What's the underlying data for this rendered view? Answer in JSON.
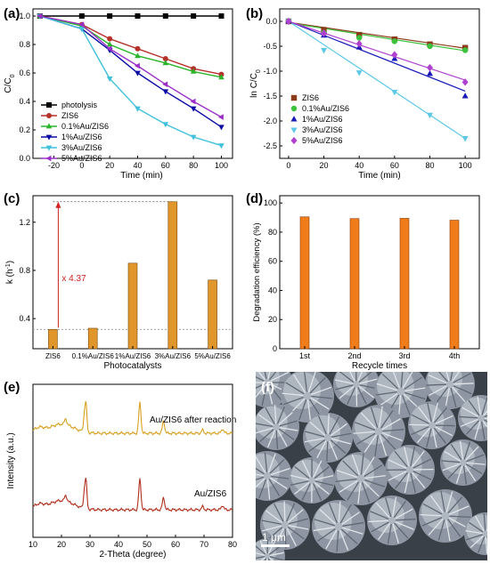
{
  "panels": {
    "a": {
      "label": "(a)"
    },
    "b": {
      "label": "(b)"
    },
    "c": {
      "label": "(c)"
    },
    "d": {
      "label": "(d)"
    },
    "e": {
      "label": "(e)"
    },
    "f": {
      "label": "(f)",
      "scale_bar": "1 μm"
    }
  },
  "chart_data": [
    {
      "id": "a",
      "type": "line",
      "xlabel": "Time (min)",
      "ylabel": "C/C0",
      "xlim": [
        -35,
        108
      ],
      "ylim": [
        0.0,
        1.05
      ],
      "xticks": [
        -20,
        0,
        20,
        40,
        60,
        80,
        100
      ],
      "yticks": [
        0.0,
        0.2,
        0.4,
        0.6,
        0.8,
        1.0
      ],
      "xticklabels": [
        "-20",
        "0",
        "20",
        "40",
        "60",
        "80",
        "100"
      ],
      "yticklabels": [
        "0.0",
        "0.2",
        "0.4",
        "0.6",
        "0.8",
        "1.0"
      ],
      "legend_position": "bottom-left",
      "x": [
        -30,
        0,
        20,
        40,
        60,
        80,
        100
      ],
      "series": [
        {
          "name": "photolysis",
          "color": "#000000",
          "marker": "square",
          "values": [
            1.0,
            1.0,
            1.0,
            1.0,
            1.0,
            1.0,
            1.0
          ]
        },
        {
          "name": "ZIS6",
          "color": "#b5312a",
          "marker": "circle",
          "values": [
            1.0,
            0.94,
            0.84,
            0.77,
            0.7,
            0.63,
            0.59
          ]
        },
        {
          "name": "0.1%Au/ZIS6",
          "color": "#2bb52b",
          "marker": "triangle-up",
          "values": [
            1.0,
            0.93,
            0.8,
            0.72,
            0.67,
            0.61,
            0.57
          ]
        },
        {
          "name": "1%Au/ZIS6",
          "color": "#0b0ba6",
          "marker": "triangle-down",
          "values": [
            1.0,
            0.91,
            0.76,
            0.6,
            0.47,
            0.35,
            0.22
          ]
        },
        {
          "name": "3%Au/ZIS6",
          "color": "#3fc0dc",
          "marker": "triangle-down",
          "values": [
            1.0,
            0.91,
            0.56,
            0.35,
            0.24,
            0.15,
            0.09
          ]
        },
        {
          "name": "5%Au/ZIS6",
          "color": "#9b30c8",
          "marker": "triangle-left",
          "values": [
            1.0,
            0.94,
            0.77,
            0.65,
            0.52,
            0.4,
            0.29
          ]
        }
      ]
    },
    {
      "id": "b",
      "type": "scatter",
      "xlabel": "Time (min)",
      "ylabel": "ln C/C0",
      "xlim": [
        -5,
        108
      ],
      "ylim": [
        -2.75,
        0.25
      ],
      "xticks": [
        0,
        20,
        40,
        60,
        80,
        100
      ],
      "yticks": [
        0.0,
        -0.5,
        -1.0,
        -1.5,
        -2.0,
        -2.5
      ],
      "xticklabels": [
        "0",
        "20",
        "40",
        "60",
        "80",
        "100"
      ],
      "yticklabels": [
        "0.0",
        "-0.5",
        "-1.0",
        "-1.5",
        "-2.0",
        "-2.5"
      ],
      "legend_position": "bottom-left",
      "x": [
        0,
        20,
        40,
        60,
        80,
        100
      ],
      "series": [
        {
          "name": "ZIS6",
          "color": "#8b3a1a",
          "marker": "square",
          "values": [
            0.0,
            -0.17,
            -0.27,
            -0.36,
            -0.46,
            -0.53
          ]
        },
        {
          "name": "0.1%Au/ZIS6",
          "color": "#3cc23c",
          "marker": "circle",
          "values": [
            0.0,
            -0.23,
            -0.33,
            -0.4,
            -0.5,
            -0.58
          ]
        },
        {
          "name": "1%Au/ZIS6",
          "color": "#1a1ab8",
          "marker": "triangle-up",
          "values": [
            0.0,
            -0.28,
            -0.52,
            -0.75,
            -1.05,
            -1.5
          ]
        },
        {
          "name": "3%Au/ZIS6",
          "color": "#5cc8e8",
          "marker": "triangle-down",
          "values": [
            0.0,
            -0.58,
            -1.03,
            -1.42,
            -1.88,
            -2.35
          ]
        },
        {
          "name": "5%Au/ZIS6",
          "color": "#b040d0",
          "marker": "diamond",
          "values": [
            0.0,
            -0.24,
            -0.45,
            -0.67,
            -0.93,
            -1.22
          ]
        }
      ],
      "fits": [
        {
          "color": "#8b3a1a",
          "values": [
            -0.02,
            -0.54
          ]
        },
        {
          "color": "#3cc23c",
          "values": [
            -0.03,
            -0.59
          ]
        },
        {
          "color": "#1a1ab8",
          "values": [
            0.0,
            -1.4
          ]
        },
        {
          "color": "#5cc8e8",
          "values": [
            0.0,
            -2.35
          ]
        },
        {
          "color": "#b040d0",
          "values": [
            0.0,
            -1.18
          ]
        }
      ]
    },
    {
      "id": "c",
      "type": "bar",
      "xlabel": "Photocatalysts",
      "ylabel": "k (h-1)",
      "ylim": [
        0.15,
        1.42
      ],
      "yticks": [
        0.4,
        0.8,
        1.2
      ],
      "yticklabels": [
        "0.4",
        "0.8",
        "1.2"
      ],
      "categories": [
        "ZIS6",
        "0.1%Au/ZIS6",
        "1%Au/ZIS6",
        "3%Au/ZIS6",
        "5%Au/ZIS6"
      ],
      "values": [
        0.31,
        0.32,
        0.86,
        1.37,
        0.72
      ],
      "bar_color": "#e0962a",
      "annotation": "x 4.37"
    },
    {
      "id": "d",
      "type": "bar",
      "xlabel": "Recycle times",
      "ylabel": "Degradation efficiency (%)",
      "ylim": [
        0,
        100
      ],
      "yticks": [
        0,
        20,
        40,
        60,
        80,
        100
      ],
      "yticklabels": [
        "0",
        "20",
        "40",
        "60",
        "80",
        "100"
      ],
      "categories": [
        "1st",
        "2nd",
        "3rd",
        "4th"
      ],
      "values": [
        90.5,
        89.3,
        89.5,
        88.2
      ],
      "bar_color": "#f07c1a"
    },
    {
      "id": "e",
      "type": "line",
      "xlabel": "2-Theta (degree)",
      "ylabel": "Intensity (a.u.)",
      "xlim": [
        10,
        80
      ],
      "xticks": [
        10,
        20,
        30,
        40,
        50,
        60,
        70,
        80
      ],
      "xticklabels": [
        "10",
        "20",
        "30",
        "40",
        "50",
        "60",
        "70",
        "80"
      ],
      "series": [
        {
          "name": "Au/ZIS6 after reaction",
          "color": "#d8a020",
          "baseline": 0.68
        },
        {
          "name": "Au/ZIS6",
          "color": "#b0301c",
          "baseline": 0.18
        }
      ],
      "peaks_deg": [
        21.5,
        28.0,
        28.6,
        47.5,
        55.8,
        69.5,
        76.5
      ],
      "peak_heights": [
        0.04,
        0.1,
        0.18,
        0.2,
        0.08,
        0.02,
        0.03
      ]
    }
  ]
}
